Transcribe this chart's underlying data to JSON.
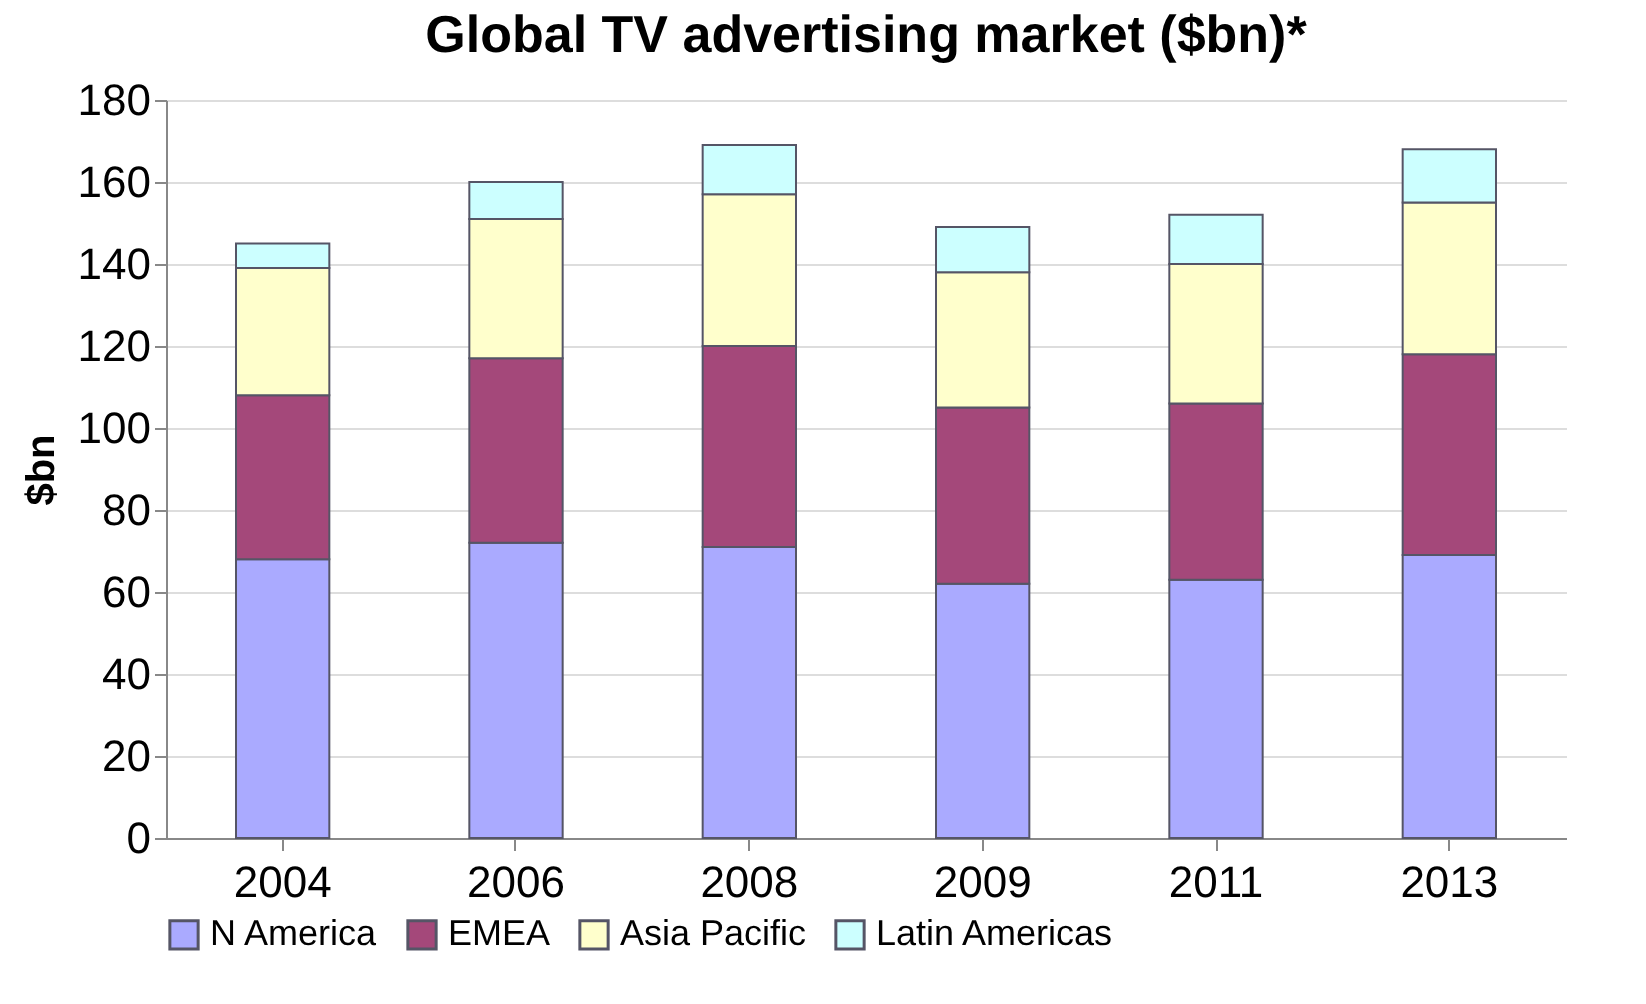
{
  "chart_data": {
    "type": "bar",
    "stacked": true,
    "title": "Global TV advertising market ($bn)*",
    "ylabel": "$bn",
    "categories": [
      "2004",
      "2006",
      "2008",
      "2009",
      "2011",
      "2013"
    ],
    "series": [
      {
        "name": "N America",
        "color": "#aaaaff",
        "values": [
          68,
          72,
          71,
          62,
          63,
          69
        ]
      },
      {
        "name": "EMEA",
        "color": "#a4487a",
        "values": [
          40,
          45,
          49,
          43,
          43,
          49
        ]
      },
      {
        "name": "Asia Pacific",
        "color": "#ffffcc",
        "values": [
          31,
          34,
          37,
          33,
          34,
          37
        ]
      },
      {
        "name": "Latin Americas",
        "color": "#ccffff",
        "values": [
          6,
          9,
          12,
          11,
          12,
          13
        ]
      }
    ],
    "ylim": [
      0,
      180
    ],
    "yticks": [
      0,
      20,
      40,
      60,
      80,
      100,
      120,
      140,
      160,
      180
    ],
    "grid": "y",
    "legend": "bottom"
  }
}
